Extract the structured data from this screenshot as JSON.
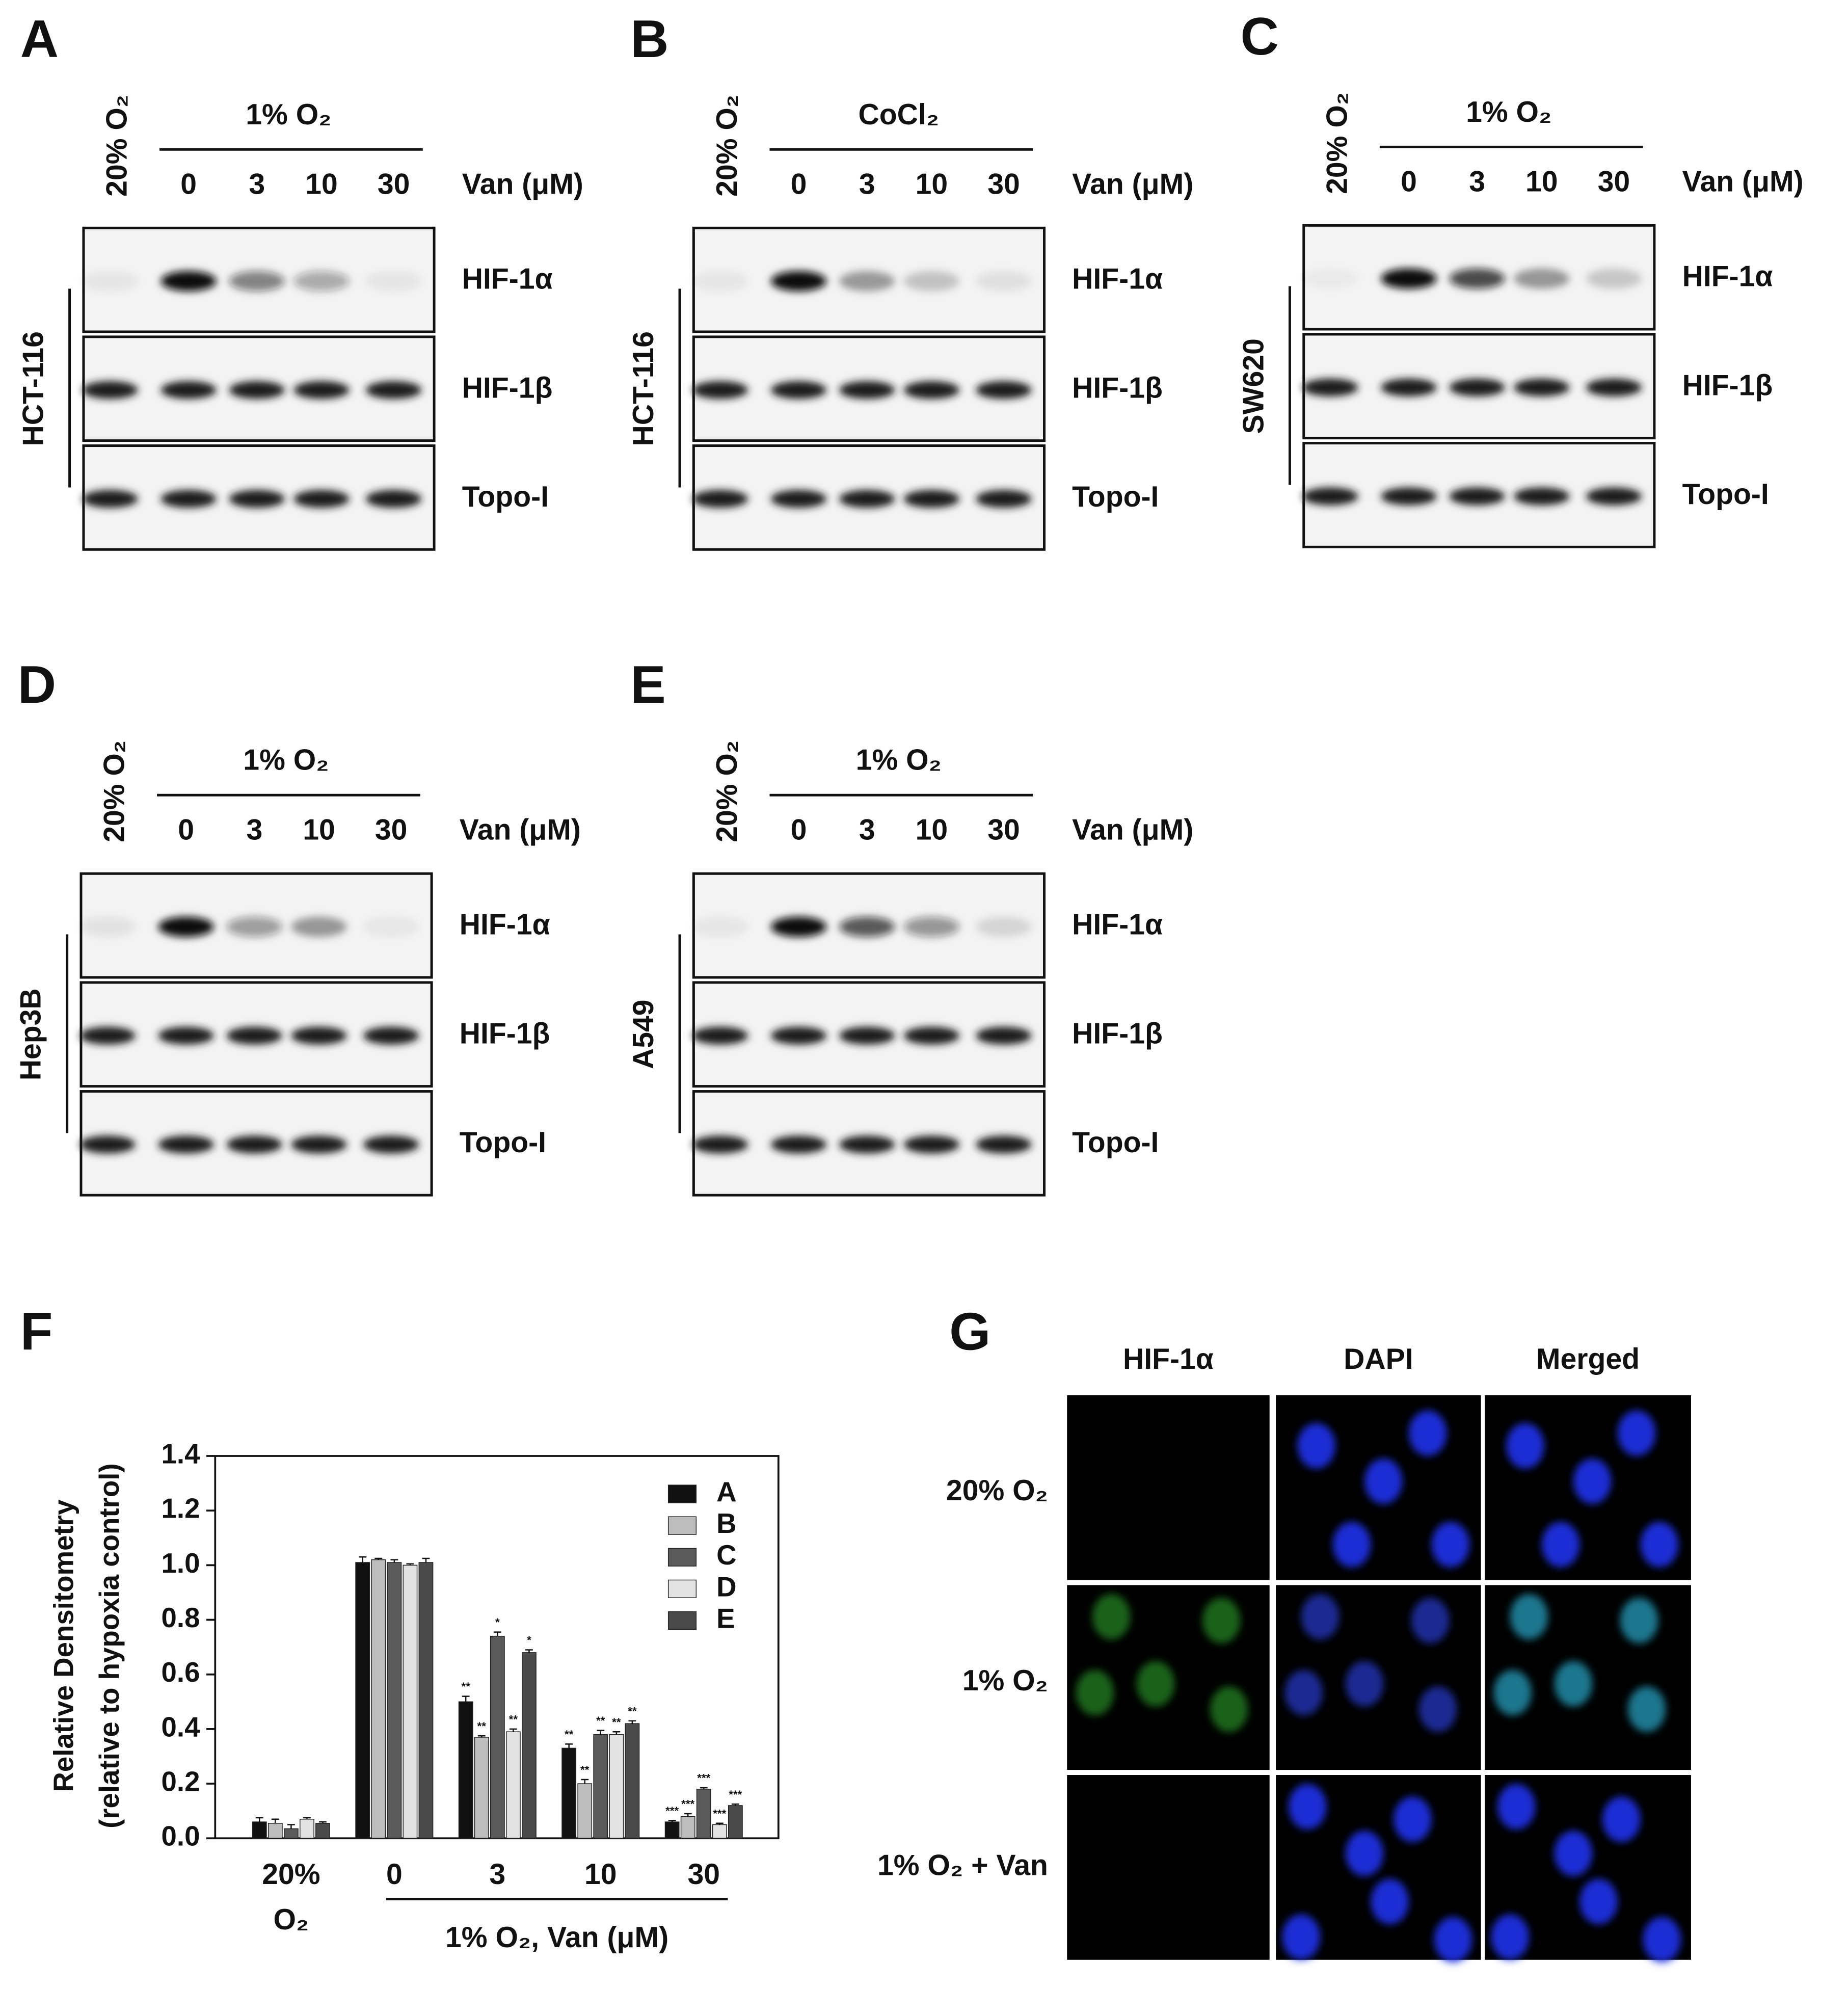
{
  "panels": [
    {
      "label": "A",
      "control": "20% O₂",
      "treatment": "1% O₂",
      "doses": [
        0,
        3,
        10,
        30
      ],
      "dose_label": "Van (μM)",
      "cell_line": "HCT-116",
      "rows": [
        "HIF-1α",
        "HIF-1β",
        "Topo-I"
      ]
    },
    {
      "label": "B",
      "control": "20% O₂",
      "treatment": "CoCl₂",
      "doses": [
        0,
        3,
        10,
        30
      ],
      "dose_label": "Van (μM)",
      "cell_line": "HCT-116",
      "rows": [
        "HIF-1α",
        "HIF-1β",
        "Topo-I"
      ]
    },
    {
      "label": "C",
      "control": "20% O₂",
      "treatment": "1% O₂",
      "doses": [
        0,
        3,
        10,
        30
      ],
      "dose_label": "Van (μM)",
      "cell_line": "SW620",
      "rows": [
        "HIF-1α",
        "HIF-1β",
        "Topo-I"
      ]
    },
    {
      "label": "D",
      "control": "20% O₂",
      "treatment": "1% O₂",
      "doses": [
        0,
        3,
        10,
        30
      ],
      "dose_label": "Van (μM)",
      "cell_line": "Hep3B",
      "rows": [
        "HIF-1α",
        "HIF-1β",
        "Topo-I"
      ]
    },
    {
      "label": "E",
      "control": "20% O₂",
      "treatment": "1% O₂",
      "doses": [
        0,
        3,
        10,
        30
      ],
      "dose_label": "Van (μM)",
      "cell_line": "A549",
      "rows": [
        "HIF-1α",
        "HIF-1β",
        "Topo-I"
      ]
    }
  ],
  "chart_data": {
    "type": "bar",
    "label": "F",
    "ylabel": [
      "Relative Densitometry",
      "(relative to hypoxia control)"
    ],
    "categories": [
      "20% O₂",
      "0",
      "3",
      "10",
      "30"
    ],
    "group_label": "1% O₂, Van (μM)",
    "ylim": [
      0,
      1.4
    ],
    "yticks": [
      {
        "value": 0,
        "label": "0.0"
      },
      0.2,
      0.4,
      0.6,
      0.8,
      {
        "value": 1,
        "label": "1.0"
      },
      1.2,
      1.4
    ],
    "legend": "upper right",
    "series": [
      {
        "name": "A",
        "color": "#111111",
        "values": [
          0.06,
          1.01,
          0.5,
          0.33,
          0.06
        ],
        "errors": [
          0.015,
          0.02,
          0.02,
          0.015,
          0.005
        ],
        "significance": [
          null,
          null,
          "**",
          "**",
          "***"
        ]
      },
      {
        "name": "B",
        "color": "#bdbdbd",
        "values": [
          0.055,
          1.02,
          0.37,
          0.2,
          0.08
        ],
        "errors": [
          0.015,
          0.005,
          0.005,
          0.015,
          0.01
        ],
        "significance": [
          null,
          null,
          "**",
          "**",
          "***"
        ]
      },
      {
        "name": "C",
        "color": "#5a5a5a",
        "values": [
          0.035,
          1.01,
          0.74,
          0.38,
          0.18
        ],
        "errors": [
          0.015,
          0.01,
          0.015,
          0.015,
          0.005
        ],
        "significance": [
          null,
          null,
          "*",
          "**",
          "***"
        ]
      },
      {
        "name": "D",
        "color": "#e3e3e3",
        "values": [
          0.07,
          1.0,
          0.39,
          0.38,
          0.05
        ],
        "errors": [
          0.005,
          0.005,
          0.01,
          0.01,
          0.005
        ],
        "significance": [
          null,
          null,
          "**",
          "**",
          "***"
        ]
      },
      {
        "name": "E",
        "color": "#4a4a4a",
        "values": [
          0.055,
          1.01,
          0.68,
          0.42,
          0.12
        ],
        "errors": [
          0.005,
          0.015,
          0.01,
          0.01,
          0.005
        ],
        "significance": [
          null,
          null,
          "*",
          "**",
          "***"
        ]
      }
    ]
  },
  "imaging": {
    "label": "G",
    "columns": [
      "HIF-1α",
      "DAPI",
      "Merged"
    ],
    "rows": [
      "20% O₂",
      "1% O₂",
      "1% O₂ + Van"
    ]
  }
}
